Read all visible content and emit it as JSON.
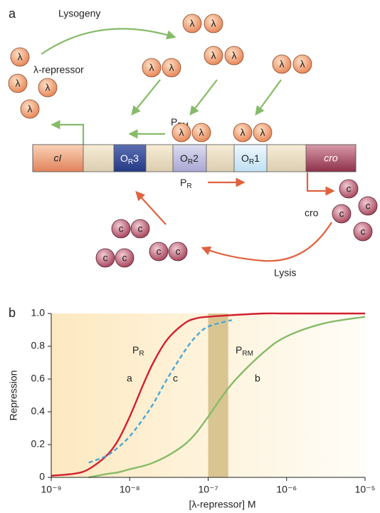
{
  "panel_a": {
    "label": "a",
    "lysogeny": "Lysogeny",
    "repressor_label": "λ-repressor",
    "lambda": "λ",
    "cro_symbol": "c",
    "p_rm": {
      "main": "P",
      "sub": "RM"
    },
    "p_r": {
      "main": "P",
      "sub": "R"
    },
    "genes": {
      "ci": "cI",
      "or3": {
        "main": "O",
        "sub": "R",
        "num": "3"
      },
      "or2": {
        "main": "O",
        "sub": "R",
        "num": "2"
      },
      "or1": {
        "main": "O",
        "sub": "R",
        "num": "1"
      },
      "cro": "cro"
    },
    "cro_label": "cro",
    "lysis": "Lysis"
  },
  "chart_data": {
    "type": "line",
    "label": "b",
    "xlabel": "[λ-repressor] M",
    "ylabel": "Repression",
    "xscale": "log",
    "x": [
      1e-09,
      2e-09,
      3e-09,
      5e-09,
      7e-09,
      1e-08,
      1.5e-08,
      2e-08,
      3e-08,
      5e-08,
      7e-08,
      1e-07,
      2e-07,
      5e-07,
      1e-06,
      3e-06,
      1e-05
    ],
    "series": [
      {
        "name": "a",
        "color": "#d3202f",
        "style": "solid",
        "values": [
          0.01,
          0.023,
          0.05,
          0.13,
          0.22,
          0.37,
          0.57,
          0.7,
          0.84,
          0.94,
          0.97,
          0.98,
          0.99,
          1,
          1,
          1,
          1
        ]
      },
      {
        "name": "c",
        "color": "#4aa6d6",
        "style": "dashed",
        "values": [
          null,
          null,
          0.09,
          0.13,
          0.18,
          0.25,
          0.36,
          0.45,
          0.6,
          0.77,
          0.86,
          0.92,
          0.96,
          null,
          null,
          null,
          null
        ]
      },
      {
        "name": "b",
        "color": "#86bb68",
        "style": "solid",
        "values": [
          null,
          null,
          0,
          0.02,
          0.03,
          0.05,
          0.07,
          0.09,
          0.13,
          0.2,
          0.27,
          0.37,
          0.57,
          0.76,
          0.86,
          0.94,
          0.98
        ]
      }
    ],
    "curve_annotations": [
      {
        "main": "P",
        "sub": "R"
      },
      {
        "main": "P",
        "sub": "RM"
      }
    ],
    "xlim": [
      1e-09,
      1e-05
    ],
    "ylim": [
      0,
      1
    ],
    "xticks": [
      {
        "value": 1e-09,
        "label": "10⁻⁹"
      },
      {
        "value": 1e-08,
        "label": "10⁻⁸"
      },
      {
        "value": 1e-07,
        "label": "10⁻⁷"
      },
      {
        "value": 1e-06,
        "label": "10⁻⁶"
      },
      {
        "value": 1e-05,
        "label": "10⁻⁵"
      }
    ],
    "yticks": [
      0,
      0.2,
      0.4,
      0.6,
      0.8,
      {
        "value": 1,
        "label": "1.0"
      }
    ],
    "shaded_range": [
      1e-07,
      1.8e-07
    ],
    "shaded_color": "#d8c592"
  }
}
